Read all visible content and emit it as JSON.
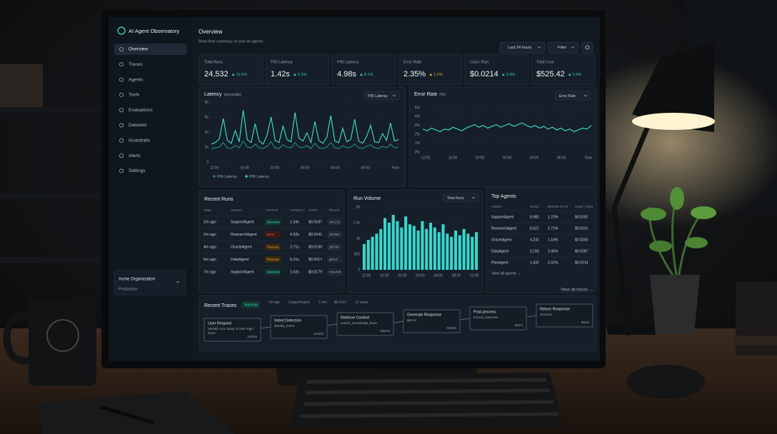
{
  "sidebar": {
    "title": "AI Agent Observatory",
    "nav": [
      "Overview",
      "Traces",
      "Agents",
      "Tools",
      "Evaluations",
      "Datasets",
      "Guardrails",
      "Alerts",
      "Settings"
    ],
    "org": "Acme Organization",
    "env": "Production"
  },
  "header": {
    "title": "Overview",
    "subtitle": "Real-time summary of your AI agents",
    "range": "Last 24 hours",
    "filter": "Filter"
  },
  "kpis": [
    {
      "label": "Total Runs",
      "value": "24,532",
      "delta": "12.5%",
      "color": "#2fc6b4"
    },
    {
      "label": "P50 Latency",
      "value": "1.42s",
      "delta": "6.3%",
      "color": "#2fc6b4"
    },
    {
      "label": "P95 Latency",
      "value": "4.98s",
      "delta": "8.1%",
      "color": "#2fc6b4"
    },
    {
      "label": "Error Rate",
      "value": "2.35%",
      "delta": "1.2%",
      "color": "#e0a03a"
    },
    {
      "label": "Cost / Run",
      "value": "$0.0214",
      "delta": "3.4%",
      "color": "#2fc6b4"
    },
    {
      "label": "Total Cost",
      "value": "$525.42",
      "delta": "5.6%",
      "color": "#2fc6b4"
    }
  ],
  "latency_chart": {
    "type": "line",
    "title": "Latency",
    "unit": "(seconds)",
    "selector": "P95 Latency",
    "x_labels": [
      "12:00",
      "16:00",
      "20:00",
      "00:00",
      "04:00",
      "08:00",
      "Now"
    ],
    "ylim": [
      0,
      8
    ],
    "yticks": [
      {
        "value": 0,
        "label": "0"
      },
      {
        "value": 2,
        "label": "2s"
      },
      {
        "value": 4,
        "label": "4s"
      },
      {
        "value": 6,
        "label": "6s"
      },
      {
        "value": 8,
        "label": "8s"
      }
    ],
    "series": [
      {
        "name": "P50 Latency",
        "color": "#1f8f86",
        "values": [
          1.8,
          1.9,
          2.0,
          2.6,
          1.9,
          1.8,
          2.2,
          1.9,
          2.8,
          2.0,
          1.9,
          2.4,
          1.9,
          1.8,
          2.1,
          2.7,
          1.9,
          1.8,
          2.3,
          2.0,
          1.9,
          2.6,
          2.0,
          1.9,
          2.2,
          1.8,
          2.5,
          1.9,
          1.8,
          2.0,
          2.6,
          1.9,
          1.8,
          2.2,
          1.9,
          2.0,
          2.4,
          1.9,
          1.8,
          2.1,
          2.3,
          1.9,
          1.8,
          2.1,
          1.9,
          2.4,
          1.9,
          2.0
        ]
      },
      {
        "name": "P95 Latency",
        "color": "#3fe0d0",
        "values": [
          2.4,
          2.6,
          3.1,
          5.8,
          2.9,
          2.5,
          4.2,
          2.7,
          6.9,
          3.0,
          2.6,
          5.1,
          2.8,
          2.4,
          3.6,
          6.0,
          2.9,
          2.6,
          4.8,
          3.0,
          2.7,
          6.6,
          3.2,
          2.8,
          3.9,
          2.6,
          5.4,
          2.9,
          2.5,
          3.3,
          6.2,
          2.8,
          2.6,
          4.5,
          2.7,
          3.0,
          5.7,
          2.8,
          2.5,
          3.4,
          4.9,
          2.7,
          2.6,
          3.8,
          2.9,
          5.2,
          2.8,
          3.0
        ]
      }
    ]
  },
  "error_chart": {
    "type": "line",
    "title": "Error Rate",
    "unit": "(%)",
    "selector": "Error Rate",
    "x_labels": [
      "12:00",
      "16:00",
      "20:00",
      "00:00",
      "04:00",
      "08:00",
      "Now"
    ],
    "ylim": [
      0,
      5
    ],
    "yticks": [
      {
        "value": 0,
        "label": "0%"
      },
      {
        "value": 1,
        "label": "1%"
      },
      {
        "value": 2,
        "label": "2%"
      },
      {
        "value": 3,
        "label": "3%"
      },
      {
        "value": 4,
        "label": "4%"
      },
      {
        "value": 5,
        "label": "5%"
      }
    ],
    "series": [
      {
        "name": "Error Rate",
        "color": "#3fe0d0",
        "values": [
          2.6,
          2.4,
          2.7,
          2.5,
          2.3,
          2.6,
          2.5,
          2.8,
          2.6,
          2.4,
          2.7,
          2.9,
          3.1,
          2.8,
          3.0,
          2.7,
          2.9,
          3.1,
          2.8,
          3.0,
          3.2,
          2.9,
          3.1,
          3.3,
          3.0,
          2.8,
          3.0,
          2.7,
          2.9,
          2.6,
          2.8,
          2.5,
          2.7,
          2.4,
          2.6,
          2.3,
          2.5,
          2.7,
          2.6,
          3.0
        ]
      }
    ]
  },
  "volume_chart": {
    "type": "bar",
    "title": "Run Volume",
    "selector": "Total Runs",
    "color": "#38d6cb",
    "x_labels": [
      "12:00",
      "16:00",
      "20:00",
      "00:00",
      "04:00",
      "08:00",
      "12:00"
    ],
    "ylim": [
      0,
      2000
    ],
    "yticks": [
      0,
      500,
      {
        "value": 1000,
        "label": "1k"
      },
      {
        "value": 1500,
        "label": "1.5k"
      },
      {
        "value": 2000,
        "label": "2k"
      }
    ],
    "values": [
      820,
      950,
      1050,
      1150,
      1300,
      1650,
      1500,
      1750,
      1550,
      1350,
      1700,
      1450,
      1400,
      1250,
      1550,
      1300,
      1500,
      1350,
      1200,
      1450,
      1150,
      1050,
      1250,
      1100,
      1300,
      1150,
      1050,
      1200
    ]
  },
  "recent_runs": {
    "title": "Recent Runs",
    "columns": [
      "TIME",
      "AGENT",
      "STATUS",
      "LATENCY",
      "COST",
      "TRACE"
    ],
    "rows": [
      [
        "2m ago",
        "SupportAgent",
        "Success",
        "1.34s",
        "$0.0187",
        "abc123"
      ],
      [
        "2m ago",
        "ResearchAgent",
        "Error",
        "4.32s",
        "$0.0241",
        "def456"
      ],
      [
        "4m ago",
        "OracleAgent",
        "Timeout",
        "2.71s",
        "$0.0190",
        "ghi789"
      ],
      [
        "6m ago",
        "DataAgent",
        "Timeout",
        "6.21s",
        "$0.0317",
        "jkl012"
      ],
      [
        "7m ago",
        "SupportAgent",
        "Success",
        "1.02s",
        "$0.0179",
        "mno345"
      ]
    ]
  },
  "top_agents": {
    "title": "Top Agents",
    "columns": [
      "AGENT",
      "RUNS",
      "ERROR RATE",
      "COST / RUN"
    ],
    "rows": [
      [
        "SupportAgent",
        "8,982",
        "1.22%",
        "$0.0182"
      ],
      [
        "ResearchAgent",
        "6,521",
        "2.71%",
        "$0.0231"
      ],
      [
        "OracleAgent",
        "4,232",
        "1.18%",
        "$0.0203"
      ],
      [
        "DataAgent",
        "2,150",
        "3.45%",
        "$0.0287"
      ],
      [
        "PlanAgent",
        "1,432",
        "2.01%",
        "$0.0214"
      ]
    ],
    "link": "View all agents →"
  },
  "recent_traces": {
    "title": "Recent Traces",
    "status": "Success",
    "time": "2m ago",
    "agent": "SupportAgent",
    "latency": "1.34s",
    "cost": "$0.0187",
    "steps": "12 steps",
    "link": "View all traces →",
    "nodes": [
      {
        "label": "User Request",
        "detail": "Identify root cause of user login issue",
        "time": "120ms"
      },
      {
        "label": "Intent Detection",
        "detail": "identify_intent",
        "time": "210ms"
      },
      {
        "label": "Retrieve Context",
        "detail": "search_knowledge_base",
        "time": "345ms"
      },
      {
        "label": "Generate Response",
        "detail": "gpt-4o",
        "time": "425ms"
      },
      {
        "label": "Post-process",
        "detail": "format_response",
        "time": "95ms"
      },
      {
        "label": "Return Response",
        "detail": "Success",
        "time": "85ms"
      }
    ]
  }
}
